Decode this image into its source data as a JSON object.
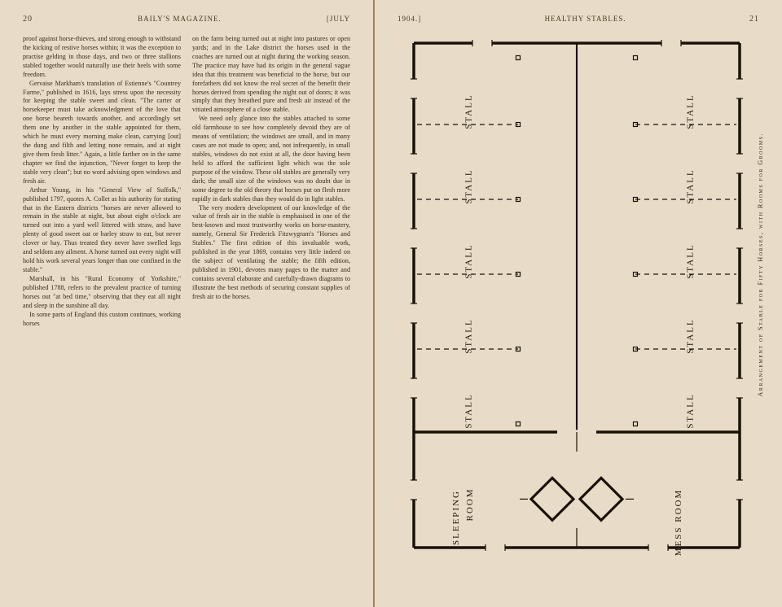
{
  "leftPage": {
    "pageNum": "20",
    "headerCenter": "BAILY'S MAGAZINE.",
    "headerRight": "[JULY",
    "col1": [
      "proof against horse-thieves, and strong enough to withstand the kicking of restive horses within; it was the exception to practise gelding in those days, and two or three stallions stabled together would naturally use their heels with some freedom.",
      "Gervaise Markham's translation of Estienne's \"Countrey Farme,\" published in 1616, lays stress upon the necessity for keeping the stable sweet and clean. \"The carter or horsekeeper must take acknowledgment of the love that one horse beareth towards another, and accordingly set them one by another in the stable appointed for them, which he must every morning make clean, carrying [out] the dung and filth and letting none remain, and at night give them fresh litter.\" Again, a little farther on in the same chapter we find the injunction, \"Never forget to keep the stable very clean\"; but no word advising open windows and fresh air.",
      "Arthur Young, in his \"General View of Suffolk,\" published 1797, quotes A. Collet as his authority for stating that in the Eastern districts \"horses are never allowed to remain in the stable at night, but about eight o'clock are turned out into a yard well littered with straw, and have plenty of good sweet oat or barley straw to eat, but never clover or hay. Thus treated they never have swelled legs and seldom any ailment. A horse turned out every night will hold his work several years longer than one confined in the stable.\"",
      "Marshall, in his \"Rural Economy of Yorkshire,\" published 1788, refers to the prevalent practice of turning horses out \"at bed time,\" observing that they eat all night and sleep in the sunshine all day.",
      "In some parts of England this custom continues, working horses"
    ],
    "col2": [
      "on the farm being turned out at night into pastures or open yards; and in the Lake district the horses used in the coaches are turned out at night during the working season. The practice may have had its origin in the general vague idea that this treatment was beneficial to the horse, but our forefathers did not know the real secret of the benefit their horses derived from spending the night out of doors; it was simply that they breathed pure and fresh air instead of the vitiated atmosphere of a close stable.",
      "We need only glance into the stables attached to some old farmhouse to see how completely devoid they are of means of ventilation; the windows are small, and in many cases are not made to open; and, not infrequently, in small stables, windows do not exist at all, the door having been held to afford the sufficient light which was the sole purpose of the window. These old stables are generally very dark; the small size of the windows was no doubt due in some degree to the old theory that horses put on flesh more rapidly in dark stables than they would do in light stables.",
      "The very modern development of our knowledge of the value of fresh air in the stable is emphasised in one of the best-known and most trustworthy works on horse-mastery, namely, General Sir Frederick Fitzwygram's \"Horses and Stables.\" The first edition of this invaluable work, published in the year 1869, contains very little indeed on the subject of ventilating the stable; the fifth edition, published in 1901, devotes many pages to the matter and contains several elaborate and carefully-drawn diagrams to illustrate the best methods of securing constant supplies of fresh air to the horses."
    ]
  },
  "rightPage": {
    "headerLeft": "1904.]",
    "headerCenter": "HEALTHY STABLES.",
    "pageNum": "21",
    "caption": "Arrangement of Stable for Fifty Horses, with Rooms for Grooms.",
    "diagram": {
      "bgColor": "#e8dcc8",
      "lineColor": "#1a1208",
      "lineWeight": 3.5,
      "thinWeight": 1.2,
      "dashPattern": "6,5",
      "stallLabel": "STALL",
      "sleepingLabel": "SLEEPING ROOM",
      "messLabel": "MESS ROOM",
      "labelFont": 11,
      "stallCount": 5,
      "outerX": 20,
      "outerY": 10,
      "outerW": 400,
      "outerH": 620,
      "centerX": 220,
      "stallTopStart": 20,
      "stallH": 92,
      "roomTopY": 488,
      "windowW": 24,
      "windowGap": 8
    }
  }
}
